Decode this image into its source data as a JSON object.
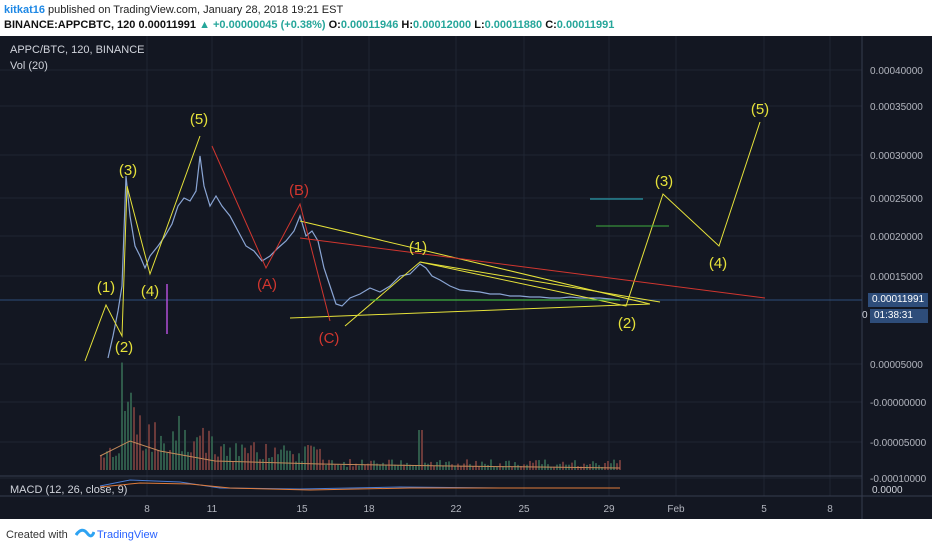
{
  "header": {
    "user": "kitkat16",
    "published": "published on TradingView.com, January 28, 2018 19:21 EST",
    "symbol_line_prefix": "BINANCE:APPCBTC, 120",
    "last": "0.00011991",
    "change": "▲ +0.00000045 (+0.38%)",
    "o_label": "O:",
    "o_val": "0.00011946",
    "h_label": "H:",
    "h_val": "0.00012000",
    "l_label": "L:",
    "l_val": "0.00011880",
    "c_label": "C:",
    "c_val": "0.00011991"
  },
  "chart": {
    "symbol_title": "APPC/BTC, 120, BINANCE",
    "vol_label": "Vol (20)",
    "macd_label": "MACD (12, 26, close, 9)",
    "price_tag": "0.00011991",
    "countdown_tag": "01:38:31",
    "countdown_prefix": "0",
    "macd_axis_label": "0.0000"
  },
  "footer": {
    "created_with": "Created with",
    "brand": "TradingView"
  },
  "colors": {
    "background": "#131722",
    "price_line": "#8aa5d4",
    "wave_yellow": "#e6e23a",
    "wave_red": "#d1362f",
    "price_tag": "#2e4d7a"
  },
  "chart_data": {
    "type": "line",
    "title": "APPC/BTC, 120, BINANCE",
    "x_ticks": [
      "8",
      "11",
      "15",
      "18",
      "22",
      "25",
      "29",
      "Feb",
      "5",
      "8"
    ],
    "y_ticks": [
      "0.00040000",
      "0.00035000",
      "0.00030000",
      "0.00025000",
      "0.00020000",
      "0.00015000",
      "0.00005000",
      "-0.00000000",
      "-0.00005000",
      "-0.00010000"
    ],
    "current_price": 0.00011991,
    "price_series_approx": [
      [
        "Jan 6",
        8e-05
      ],
      [
        "Jan 7",
        0.00011
      ],
      [
        "Jan 7.3",
        0.000255
      ],
      [
        "Jan 8",
        0.00016
      ],
      [
        "Jan 9",
        0.0002
      ],
      [
        "Jan 10",
        0.00031
      ],
      [
        "Jan 11",
        0.00025
      ],
      [
        "Jan 12",
        0.00021
      ],
      [
        "Jan 13",
        0.00019
      ],
      [
        "Jan 14",
        0.0002
      ],
      [
        "Jan 15",
        0.000215
      ],
      [
        "Jan 16",
        0.00013
      ],
      [
        "Jan 18",
        0.00013
      ],
      [
        "Jan 20",
        0.000165
      ],
      [
        "Jan 22",
        0.000135
      ],
      [
        "Jan 25",
        0.000125
      ],
      [
        "Jan 28",
        0.00012
      ]
    ],
    "wave_labels_yellow": [
      "(1)",
      "(2)",
      "(3)",
      "(4)",
      "(5)",
      "(1)",
      "(2)",
      "(3)",
      "(4)",
      "(5)"
    ],
    "wave_labels_red": [
      "(A)",
      "(B)",
      "(C)"
    ]
  }
}
